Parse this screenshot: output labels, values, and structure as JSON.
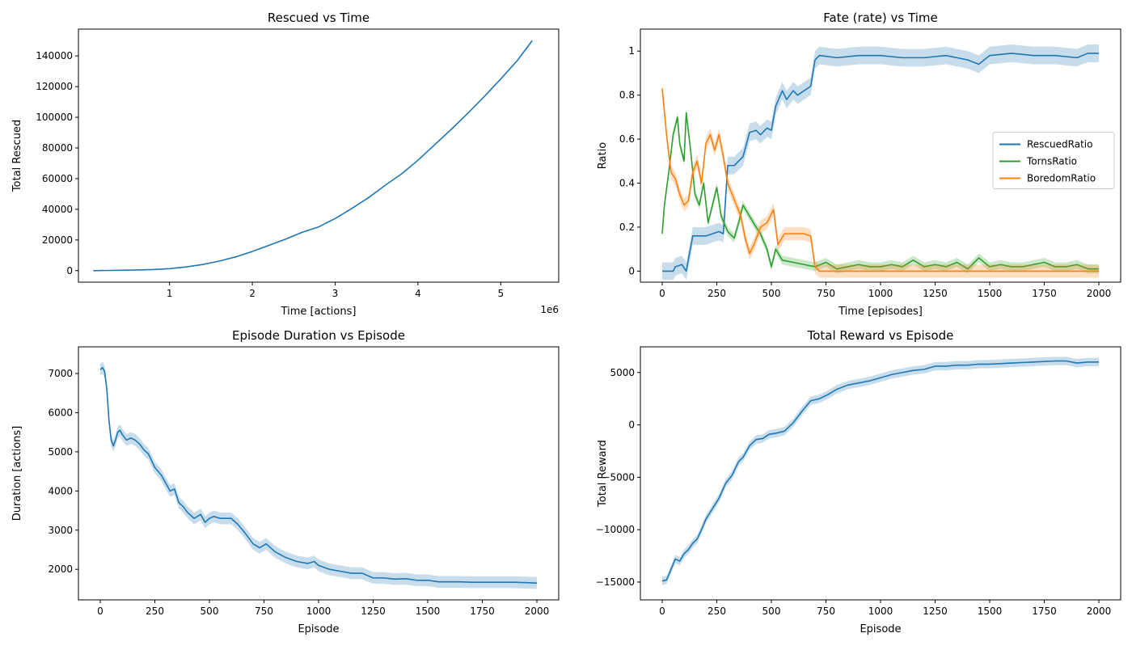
{
  "chart_data": [
    {
      "type": "line",
      "title": "Rescued vs Time",
      "xlabel": "Time [actions]",
      "ylabel": "Total Rescued",
      "x_offset_label": "1e6",
      "xlim": [
        -0.1,
        5.7
      ],
      "ylim": [
        -7500,
        157500
      ],
      "xticks": [
        1,
        2,
        3,
        4,
        5
      ],
      "yticks": [
        0,
        20000,
        40000,
        60000,
        80000,
        100000,
        120000,
        140000
      ],
      "grid": false,
      "legend": "none",
      "series": [
        {
          "color": "#1f77b4",
          "x": [
            0.08,
            0.5,
            0.8,
            1.0,
            1.2,
            1.4,
            1.6,
            1.8,
            2.0,
            2.2,
            2.4,
            2.6,
            2.8,
            3.0,
            3.2,
            3.4,
            3.6,
            3.8,
            4.0,
            4.2,
            4.4,
            4.6,
            4.8,
            5.0,
            5.2,
            5.38
          ],
          "y": [
            0,
            300,
            700,
            1300,
            2400,
            4000,
            6200,
            9000,
            12500,
            16500,
            20500,
            25000,
            28500,
            34000,
            40500,
            47500,
            55500,
            63000,
            72000,
            82000,
            92000,
            102500,
            113500,
            125000,
            137000,
            150000
          ]
        }
      ]
    },
    {
      "type": "line",
      "title": "Fate (rate) vs Time",
      "xlabel": "Time [episodes]",
      "ylabel": "Ratio",
      "xlim": [
        -100,
        2100
      ],
      "ylim": [
        -0.05,
        1.1
      ],
      "xticks": [
        0,
        250,
        500,
        750,
        1000,
        1250,
        1500,
        1750,
        2000
      ],
      "yticks": [
        0.0,
        0.2,
        0.4,
        0.6,
        0.8,
        1.0
      ],
      "grid": false,
      "legend": "center-right",
      "series": [
        {
          "name": "RescuedRatio",
          "color": "#1f77b4",
          "band": 0.04,
          "x": [
            0,
            50,
            60,
            90,
            110,
            140,
            200,
            260,
            280,
            300,
            330,
            350,
            370,
            400,
            430,
            450,
            480,
            500,
            520,
            550,
            570,
            600,
            620,
            650,
            680,
            700,
            720,
            800,
            900,
            1000,
            1100,
            1200,
            1300,
            1400,
            1450,
            1500,
            1600,
            1700,
            1800,
            1900,
            1950,
            2000
          ],
          "y": [
            0,
            0,
            0.02,
            0.03,
            0,
            0.16,
            0.16,
            0.18,
            0.17,
            0.48,
            0.48,
            0.5,
            0.52,
            0.63,
            0.64,
            0.62,
            0.65,
            0.64,
            0.75,
            0.82,
            0.78,
            0.82,
            0.8,
            0.82,
            0.84,
            0.96,
            0.98,
            0.97,
            0.98,
            0.98,
            0.97,
            0.97,
            0.98,
            0.96,
            0.94,
            0.98,
            0.99,
            0.98,
            0.98,
            0.97,
            0.99,
            0.99
          ]
        },
        {
          "name": "TornsRatio",
          "color": "#2ca02c",
          "band": 0.02,
          "x": [
            0,
            10,
            30,
            50,
            70,
            80,
            100,
            110,
            130,
            150,
            170,
            190,
            210,
            230,
            250,
            270,
            300,
            330,
            350,
            370,
            400,
            430,
            450,
            480,
            500,
            520,
            550,
            600,
            650,
            700,
            750,
            800,
            850,
            900,
            950,
            1000,
            1050,
            1100,
            1150,
            1200,
            1250,
            1300,
            1350,
            1400,
            1450,
            1500,
            1550,
            1600,
            1650,
            1700,
            1750,
            1800,
            1850,
            1900,
            1950,
            2000
          ],
          "y": [
            0.17,
            0.3,
            0.45,
            0.62,
            0.7,
            0.58,
            0.5,
            0.72,
            0.55,
            0.35,
            0.3,
            0.4,
            0.22,
            0.3,
            0.38,
            0.25,
            0.18,
            0.15,
            0.22,
            0.3,
            0.25,
            0.2,
            0.17,
            0.1,
            0.02,
            0.1,
            0.05,
            0.04,
            0.03,
            0.02,
            0.04,
            0.01,
            0.02,
            0.03,
            0.02,
            0.02,
            0.03,
            0.02,
            0.05,
            0.02,
            0.03,
            0.02,
            0.04,
            0.01,
            0.06,
            0.02,
            0.03,
            0.02,
            0.02,
            0.03,
            0.04,
            0.02,
            0.02,
            0.03,
            0.01,
            0.01
          ]
        },
        {
          "name": "BoredomRatio",
          "color": "#ff7f0e",
          "band": 0.03,
          "x": [
            0,
            20,
            40,
            60,
            80,
            100,
            120,
            140,
            160,
            180,
            200,
            220,
            240,
            260,
            280,
            300,
            320,
            340,
            360,
            380,
            400,
            420,
            450,
            480,
            510,
            530,
            560,
            600,
            650,
            680,
            700,
            720,
            800,
            900,
            1000,
            1500,
            2000
          ],
          "y": [
            0.83,
            0.62,
            0.45,
            0.42,
            0.35,
            0.3,
            0.32,
            0.45,
            0.5,
            0.4,
            0.58,
            0.62,
            0.55,
            0.62,
            0.52,
            0.4,
            0.35,
            0.3,
            0.25,
            0.15,
            0.08,
            0.12,
            0.2,
            0.22,
            0.28,
            0.12,
            0.17,
            0.17,
            0.17,
            0.16,
            0.02,
            0.0,
            0.0,
            0.0,
            0.0,
            0.0,
            0.0
          ]
        }
      ]
    },
    {
      "type": "line",
      "title": "Episode Duration vs Episode",
      "xlabel": "Episode",
      "ylabel": "Duration [actions]",
      "xlim": [
        -100,
        2100
      ],
      "ylim": [
        1220,
        7680
      ],
      "xticks": [
        0,
        250,
        500,
        750,
        1000,
        1250,
        1500,
        1750,
        2000
      ],
      "yticks": [
        2000,
        3000,
        4000,
        5000,
        6000,
        7000
      ],
      "grid": false,
      "legend": "none",
      "series": [
        {
          "color": "#1f77b4",
          "band": 150,
          "x": [
            0,
            10,
            20,
            30,
            40,
            50,
            60,
            70,
            80,
            90,
            100,
            120,
            140,
            160,
            180,
            200,
            220,
            250,
            280,
            300,
            320,
            340,
            360,
            380,
            400,
            430,
            460,
            480,
            500,
            520,
            550,
            600,
            630,
            660,
            700,
            730,
            760,
            800,
            850,
            900,
            950,
            980,
            1000,
            1050,
            1100,
            1150,
            1200,
            1250,
            1300,
            1350,
            1400,
            1450,
            1500,
            1550,
            1600,
            1650,
            1700,
            1800,
            1900,
            2000
          ],
          "y": [
            7100,
            7150,
            7050,
            6600,
            5800,
            5300,
            5150,
            5300,
            5500,
            5550,
            5450,
            5300,
            5350,
            5300,
            5200,
            5050,
            4950,
            4600,
            4400,
            4200,
            4000,
            4050,
            3700,
            3600,
            3450,
            3300,
            3400,
            3200,
            3300,
            3350,
            3300,
            3300,
            3150,
            2950,
            2650,
            2550,
            2650,
            2450,
            2300,
            2200,
            2150,
            2200,
            2100,
            2000,
            1950,
            1900,
            1900,
            1780,
            1780,
            1750,
            1760,
            1720,
            1720,
            1680,
            1680,
            1680,
            1670,
            1670,
            1670,
            1650
          ]
        }
      ]
    },
    {
      "type": "line",
      "title": "Total Reward vs Episode",
      "xlabel": "Episode",
      "ylabel": "Total Reward",
      "xlim": [
        -100,
        2100
      ],
      "ylim": [
        -16700,
        7450
      ],
      "xticks": [
        0,
        250,
        500,
        750,
        1000,
        1250,
        1500,
        1750,
        2000
      ],
      "yticks": [
        -15000,
        -10000,
        -5000,
        0,
        5000
      ],
      "grid": false,
      "legend": "none",
      "series": [
        {
          "color": "#1f77b4",
          "band": 400,
          "x": [
            0,
            20,
            40,
            60,
            80,
            100,
            120,
            140,
            160,
            180,
            200,
            230,
            260,
            290,
            320,
            350,
            370,
            400,
            430,
            460,
            490,
            520,
            560,
            600,
            640,
            680,
            720,
            760,
            800,
            850,
            900,
            950,
            1000,
            1050,
            1100,
            1150,
            1200,
            1250,
            1300,
            1350,
            1400,
            1450,
            1500,
            1600,
            1700,
            1800,
            1850,
            1900,
            1950,
            2000
          ],
          "y": [
            -14900,
            -14800,
            -13800,
            -12800,
            -13000,
            -12300,
            -11900,
            -11300,
            -10900,
            -10000,
            -9000,
            -8000,
            -7000,
            -5600,
            -4800,
            -3500,
            -3100,
            -2000,
            -1400,
            -1300,
            -900,
            -800,
            -600,
            200,
            1300,
            2300,
            2500,
            2900,
            3400,
            3800,
            4000,
            4200,
            4500,
            4800,
            5000,
            5200,
            5300,
            5600,
            5600,
            5700,
            5700,
            5800,
            5800,
            5900,
            6000,
            6100,
            6100,
            5900,
            6000,
            6000
          ]
        }
      ]
    }
  ]
}
